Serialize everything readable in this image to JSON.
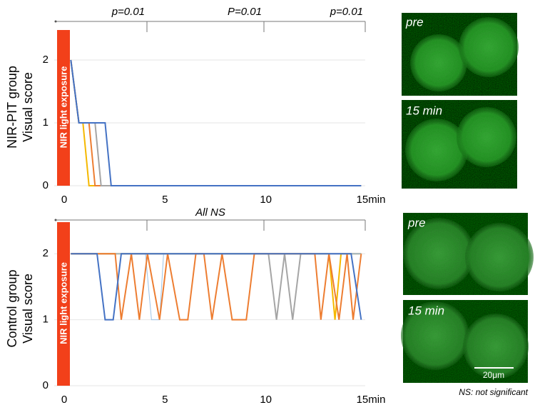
{
  "chart_data": [
    {
      "type": "line",
      "y_label": [
        "NIR-PIT group",
        "Visual score"
      ],
      "annotation": "NIR light exposure",
      "comparisons": [
        "p=0.01",
        "P=0.01",
        "p=0.01"
      ],
      "xlim": [
        0,
        15
      ],
      "ylim": [
        0,
        2.5
      ],
      "xticks": [
        0,
        5,
        10,
        {
          "value": 15,
          "label": "15min"
        }
      ],
      "yticks": [
        0,
        1,
        2
      ],
      "grid": true,
      "series": [
        {
          "color": "#f5b800",
          "x": [
            0.4,
            0.8,
            1.0,
            1.3,
            14.8
          ],
          "values": [
            2,
            1,
            1,
            0,
            0
          ]
        },
        {
          "color": "#ed7d31",
          "x": [
            0.4,
            0.8,
            1.3,
            1.6,
            14.8
          ],
          "values": [
            2,
            1,
            1,
            0,
            0
          ]
        },
        {
          "color": "#a5a5a5",
          "x": [
            0.4,
            0.8,
            1.6,
            1.9,
            14.8
          ],
          "values": [
            2,
            1,
            1,
            0,
            0
          ]
        },
        {
          "color": "#4472c4",
          "x": [
            0.4,
            0.8,
            2.1,
            2.4,
            14.8
          ],
          "values": [
            2,
            1,
            1,
            0,
            0
          ]
        }
      ]
    },
    {
      "type": "line",
      "y_label": [
        "Control group",
        "Visual score"
      ],
      "annotation": "NIR light exposure",
      "comparisons": [
        "All NS"
      ],
      "xlim": [
        0,
        15
      ],
      "ylim": [
        0,
        2.5
      ],
      "xticks": [
        0,
        5,
        10,
        {
          "value": 15,
          "label": "15min"
        }
      ],
      "yticks": [
        0,
        1,
        2
      ],
      "grid": true,
      "series": [
        {
          "color": "#f5b800",
          "x": [
            0.4,
            13.2,
            13.5,
            13.8,
            14.8
          ],
          "values": [
            2,
            2,
            1,
            2,
            2
          ]
        },
        {
          "color": "#a5a5a5",
          "x": [
            0.4,
            10.2,
            10.6,
            11.0,
            11.4,
            11.8,
            14.8
          ],
          "values": [
            2,
            2,
            1,
            2,
            1,
            2,
            2
          ]
        },
        {
          "color": "#9dc3e6",
          "x": [
            0.4,
            4.1,
            4.4,
            4.8,
            5.0,
            14.8
          ],
          "values": [
            2,
            2,
            1,
            1,
            2,
            2
          ]
        },
        {
          "color": "#ed7d31",
          "x": [
            0.4,
            2.6,
            2.9,
            3.4,
            3.8,
            4.2,
            4.8,
            5.2,
            5.8,
            6.2,
            6.6,
            7.0,
            7.4,
            7.9,
            8.4,
            9.1,
            9.5,
            12.5,
            12.8,
            13.2,
            13.7,
            14.1,
            14.4,
            14.8
          ],
          "values": [
            2,
            2,
            1,
            2,
            1,
            2,
            1,
            2,
            1,
            1,
            2,
            2,
            1,
            2,
            1,
            1,
            2,
            2,
            1,
            2,
            1,
            2,
            1,
            2
          ]
        },
        {
          "color": "#4472c4",
          "x": [
            0.4,
            1.7,
            2.1,
            2.5,
            2.9,
            14.3,
            14.8
          ],
          "values": [
            2,
            2,
            1,
            1,
            2,
            2,
            1
          ]
        }
      ]
    }
  ],
  "images": [
    {
      "label": "pre"
    },
    {
      "label": "15 min"
    },
    {
      "label": "pre"
    },
    {
      "label": "15 min"
    }
  ],
  "scale_bar": "20μm",
  "footnote": "NS: not significant"
}
